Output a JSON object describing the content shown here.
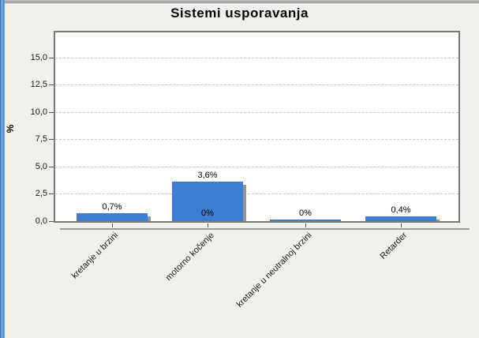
{
  "window": {
    "title": "Sistemi usporavanja"
  },
  "chart_data": {
    "type": "bar",
    "title": "Sistemi usporavanja",
    "xlabel": "",
    "ylabel": "%",
    "categories": [
      "kretanje u brzini",
      "motorno kočenje",
      "kretanje u neutralnoj brzini",
      "Retarder"
    ],
    "values": [
      0.7,
      3.6,
      0,
      0.4
    ],
    "bar_labels": [
      "0,7%",
      "3,6%",
      "0%",
      "0,4%"
    ],
    "annotations": [
      {
        "text": "0%",
        "anchor_category": "motorno kočenje",
        "value": 0,
        "position": "inside-bar-bottom"
      }
    ],
    "y_ticks": [
      "0,0",
      "2,5",
      "5,0",
      "7,5",
      "10,0",
      "12,5",
      "15,0"
    ],
    "y_tick_values": [
      0,
      2.5,
      5,
      7.5,
      10,
      12.5,
      15
    ],
    "ylim": [
      0,
      17.3
    ],
    "grid": "dashed-horizontal",
    "legend": "none",
    "x_label_rotation_deg": -45,
    "bar_color": "#3b7ed3",
    "shadow_color": "#929292",
    "plot_background": "#ffffff",
    "page_background": "#f2f0ed"
  }
}
